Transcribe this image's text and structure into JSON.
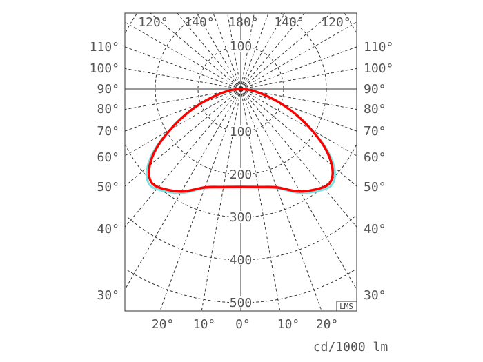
{
  "chart_data": {
    "type": "polar",
    "unit_label": "cd/1000 lm",
    "watermark": "LMS",
    "radial_ticks": [
      100,
      200,
      300,
      400,
      500
    ],
    "side_angle_labels": [
      "110°",
      "100°",
      "90°",
      "80°",
      "70°",
      "60°",
      "50°",
      "40°",
      "30°"
    ],
    "top_angle_labels": [
      "120°",
      "140°",
      "180°",
      "140°",
      "120°"
    ],
    "bottom_angle_labels": [
      "20°",
      "10°",
      "0°",
      "10°",
      "20°"
    ],
    "grid": true,
    "series": [
      {
        "color": "#7fe0e0",
        "gamma": [
          0,
          10,
          20,
          30,
          40,
          45,
          50,
          55,
          60,
          65,
          70,
          75,
          80,
          85,
          90
        ],
        "values": [
          230,
          234,
          247,
          281,
          306,
          307,
          285,
          245,
          193,
          145,
          101,
          63,
          35,
          15,
          0
        ]
      },
      {
        "color": "#ff0000",
        "gamma": [
          0,
          10,
          20,
          30,
          40,
          45,
          50,
          55,
          60,
          65,
          70,
          75,
          80,
          85,
          90
        ],
        "values": [
          229,
          233,
          245,
          277,
          300,
          300,
          278,
          240,
          190,
          143,
          100,
          62,
          35,
          15,
          0
        ]
      }
    ]
  }
}
